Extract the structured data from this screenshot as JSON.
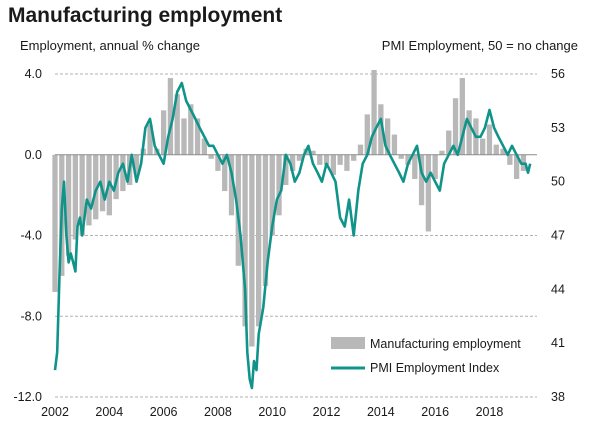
{
  "chart_data": {
    "type": "bar+line",
    "title": "Manufacturing employment",
    "left_axis_label": "Employment, annual % change",
    "right_axis_label": "PMI Employment, 50 = no change",
    "left_ylim": [
      -12,
      4
    ],
    "left_ticks": [
      "4.0",
      "0.0",
      "-4.0",
      "-8.0",
      "-12.0"
    ],
    "left_tick_values": [
      4,
      0,
      -4,
      -8,
      -12
    ],
    "right_ylim": [
      38,
      56
    ],
    "right_ticks": [
      "56",
      "53",
      "50",
      "47",
      "44",
      "41",
      "38"
    ],
    "right_tick_values": [
      56,
      53,
      50,
      47,
      44,
      41,
      38
    ],
    "xlim": [
      2002,
      2019.75
    ],
    "x_ticks": [
      "2002",
      "2004",
      "2006",
      "2008",
      "2010",
      "2012",
      "2014",
      "2016",
      "2018"
    ],
    "x_tick_values": [
      2002,
      2004,
      2006,
      2008,
      2010,
      2012,
      2014,
      2016,
      2018
    ],
    "grid": "horizontal dashed at left-axis ticks",
    "legend_placement": "bottom-right",
    "colors": {
      "bars": "#b8b8b8",
      "line": "#10948a",
      "zero_line": "#8c8c8c",
      "grid": "#b0b0b0"
    },
    "series": [
      {
        "name": "Manufacturing employment",
        "kind": "bar",
        "axis": "left",
        "x": [
          2002.0,
          2002.25,
          2002.5,
          2002.75,
          2003.0,
          2003.25,
          2003.5,
          2003.75,
          2004.0,
          2004.25,
          2004.5,
          2004.75,
          2005.0,
          2005.25,
          2005.5,
          2005.75,
          2006.0,
          2006.25,
          2006.5,
          2006.75,
          2007.0,
          2007.25,
          2007.5,
          2007.75,
          2008.0,
          2008.25,
          2008.5,
          2008.75,
          2009.0,
          2009.25,
          2009.5,
          2009.75,
          2010.0,
          2010.25,
          2010.5,
          2010.75,
          2011.0,
          2011.25,
          2011.5,
          2011.75,
          2012.0,
          2012.25,
          2012.5,
          2012.75,
          2013.0,
          2013.25,
          2013.5,
          2013.75,
          2014.0,
          2014.25,
          2014.5,
          2014.75,
          2015.0,
          2015.25,
          2015.5,
          2015.75,
          2016.0,
          2016.25,
          2016.5,
          2016.75,
          2017.0,
          2017.25,
          2017.5,
          2017.75,
          2018.0,
          2018.25,
          2018.5,
          2018.75,
          2019.0,
          2019.25
        ],
        "values": [
          -6.8,
          -6.0,
          -5.0,
          -4.2,
          -4.0,
          -3.5,
          -3.2,
          -2.8,
          -3.0,
          -2.2,
          -1.8,
          -1.5,
          -1.0,
          0.3,
          1.5,
          0.3,
          2.2,
          3.8,
          3.0,
          1.8,
          2.5,
          1.8,
          0.8,
          -0.2,
          -0.8,
          -1.8,
          -3.0,
          -5.5,
          -8.5,
          -9.5,
          -8.5,
          -6.5,
          -4.0,
          -3.0,
          -1.5,
          -0.8,
          -0.3,
          0.3,
          0.2,
          -0.5,
          -0.5,
          -1.0,
          -0.5,
          -0.8,
          -0.3,
          0.5,
          2.0,
          4.2,
          2.5,
          1.8,
          1.0,
          -0.2,
          -0.5,
          -1.2,
          -2.5,
          -3.8,
          -1.2,
          0.2,
          1.2,
          2.8,
          3.8,
          2.2,
          1.8,
          0.8,
          1.5,
          0.5,
          0.3,
          -0.5,
          -1.2,
          -0.8
        ]
      },
      {
        "name": "PMI Employment Index",
        "kind": "line",
        "axis": "right",
        "x": [
          2002.0,
          2002.08,
          2002.17,
          2002.25,
          2002.33,
          2002.42,
          2002.5,
          2002.58,
          2002.67,
          2002.75,
          2002.83,
          2002.92,
          2003.0,
          2003.17,
          2003.33,
          2003.5,
          2003.67,
          2003.83,
          2004.0,
          2004.17,
          2004.33,
          2004.5,
          2004.67,
          2004.83,
          2005.0,
          2005.17,
          2005.33,
          2005.5,
          2005.67,
          2005.83,
          2006.0,
          2006.17,
          2006.33,
          2006.5,
          2006.67,
          2006.83,
          2007.0,
          2007.17,
          2007.33,
          2007.5,
          2007.67,
          2007.83,
          2008.0,
          2008.17,
          2008.33,
          2008.5,
          2008.67,
          2008.83,
          2009.0,
          2009.08,
          2009.17,
          2009.25,
          2009.33,
          2009.42,
          2009.5,
          2009.67,
          2009.83,
          2010.0,
          2010.17,
          2010.33,
          2010.5,
          2010.67,
          2010.83,
          2011.0,
          2011.17,
          2011.33,
          2011.5,
          2011.67,
          2011.83,
          2012.0,
          2012.17,
          2012.33,
          2012.5,
          2012.67,
          2012.83,
          2013.0,
          2013.17,
          2013.33,
          2013.5,
          2013.67,
          2013.83,
          2014.0,
          2014.17,
          2014.33,
          2014.5,
          2014.67,
          2014.83,
          2015.0,
          2015.17,
          2015.33,
          2015.5,
          2015.67,
          2015.83,
          2016.0,
          2016.17,
          2016.33,
          2016.5,
          2016.67,
          2016.83,
          2017.0,
          2017.17,
          2017.33,
          2017.5,
          2017.67,
          2017.83,
          2018.0,
          2018.17,
          2018.33,
          2018.5,
          2018.67,
          2018.83,
          2019.0,
          2019.17,
          2019.33,
          2019.42,
          2019.5
        ],
        "values": [
          39.5,
          40.5,
          45.0,
          48.5,
          50.0,
          47.0,
          45.5,
          46.0,
          45.5,
          45.0,
          47.5,
          48.0,
          47.0,
          49.0,
          48.5,
          49.5,
          50.0,
          49.0,
          50.0,
          49.5,
          50.5,
          51.0,
          50.0,
          51.5,
          50.0,
          51.0,
          53.0,
          53.5,
          52.0,
          51.5,
          51.0,
          52.5,
          53.5,
          55.0,
          55.5,
          54.5,
          54.0,
          53.5,
          53.0,
          52.5,
          52.0,
          52.0,
          51.5,
          51.0,
          51.5,
          50.5,
          49.0,
          47.0,
          44.0,
          40.5,
          39.0,
          38.5,
          40.0,
          39.5,
          41.5,
          43.0,
          45.5,
          47.5,
          49.0,
          49.5,
          51.5,
          51.0,
          50.0,
          50.5,
          51.5,
          52.0,
          51.0,
          50.5,
          50.0,
          51.0,
          50.5,
          50.0,
          48.0,
          47.5,
          49.0,
          47.0,
          49.5,
          51.0,
          51.5,
          52.5,
          53.0,
          53.5,
          52.0,
          51.5,
          51.0,
          50.5,
          50.0,
          51.0,
          51.5,
          52.0,
          50.5,
          50.0,
          50.5,
          50.0,
          49.5,
          51.0,
          51.5,
          52.0,
          51.5,
          52.5,
          53.5,
          53.0,
          52.5,
          52.5,
          53.0,
          54.0,
          53.0,
          52.5,
          52.0,
          51.5,
          52.0,
          51.5,
          51.0,
          51.0,
          50.5,
          51.0
        ]
      }
    ]
  }
}
